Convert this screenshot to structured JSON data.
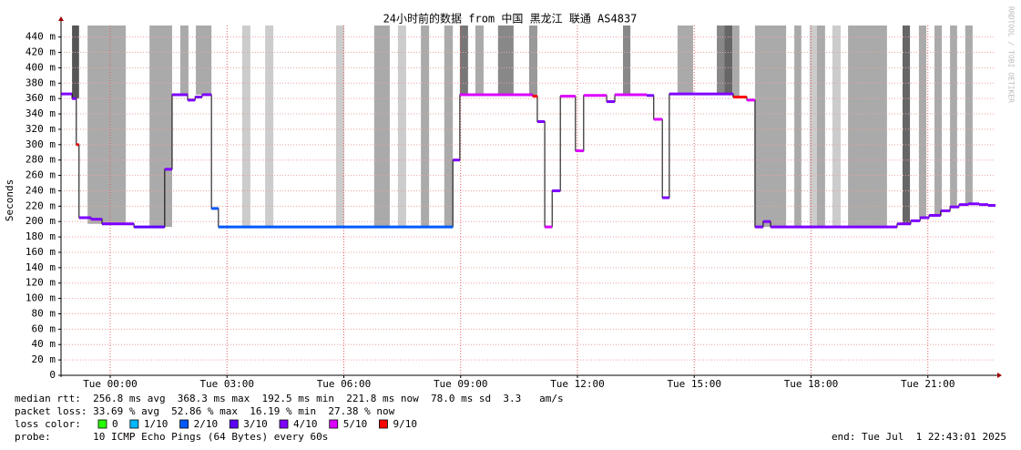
{
  "chart_data": {
    "type": "smokeping",
    "title": "24小时前的数据 from 中国 黑龙江 联通 AS4837",
    "y_label": "Seconds",
    "watermark": "RRDTOOL / TOBI OETIKER",
    "xlim": [
      -1.263,
      22.737
    ],
    "xticks": [
      {
        "value": 0,
        "label": "Tue 00:00"
      },
      {
        "value": 3,
        "label": "Tue 03:00"
      },
      {
        "value": 6,
        "label": "Tue 06:00"
      },
      {
        "value": 9,
        "label": "Tue 09:00"
      },
      {
        "value": 12,
        "label": "Tue 12:00"
      },
      {
        "value": 15,
        "label": "Tue 15:00"
      },
      {
        "value": 18,
        "label": "Tue 18:00"
      },
      {
        "value": 21,
        "label": "Tue 21:00"
      }
    ],
    "ylim": [
      0,
      455
    ],
    "yticks": [
      {
        "value": 0,
        "label": "0"
      },
      {
        "value": 20,
        "label": "20 m"
      },
      {
        "value": 40,
        "label": "40 m"
      },
      {
        "value": 60,
        "label": "60 m"
      },
      {
        "value": 80,
        "label": "80 m"
      },
      {
        "value": 100,
        "label": "100 m"
      },
      {
        "value": 120,
        "label": "120 m"
      },
      {
        "value": 140,
        "label": "140 m"
      },
      {
        "value": 160,
        "label": "160 m"
      },
      {
        "value": 180,
        "label": "180 m"
      },
      {
        "value": 200,
        "label": "200 m"
      },
      {
        "value": 220,
        "label": "220 m"
      },
      {
        "value": 240,
        "label": "240 m"
      },
      {
        "value": 260,
        "label": "260 m"
      },
      {
        "value": 280,
        "label": "280 m"
      },
      {
        "value": 300,
        "label": "300 m"
      },
      {
        "value": 320,
        "label": "320 m"
      },
      {
        "value": 340,
        "label": "340 m"
      },
      {
        "value": 360,
        "label": "360 m"
      },
      {
        "value": 380,
        "label": "380 m"
      },
      {
        "value": 400,
        "label": "400 m"
      },
      {
        "value": 420,
        "label": "420 m"
      },
      {
        "value": 440,
        "label": "440 m"
      }
    ],
    "grid": true,
    "loss_periods": [
      {
        "start": -0.98,
        "end": -0.8,
        "color": "#555555"
      },
      {
        "start": -0.58,
        "end": 0.4,
        "color": "#aaaaaa"
      },
      {
        "start": 1.01,
        "end": 1.59,
        "color": "#aaaaaa"
      },
      {
        "start": 1.8,
        "end": 2.01,
        "color": "#aaaaaa"
      },
      {
        "start": 2.2,
        "end": 2.6,
        "color": "#aaaaaa"
      },
      {
        "start": 3.39,
        "end": 3.6,
        "color": "#cccccc"
      },
      {
        "start": 3.98,
        "end": 4.19,
        "color": "#cccccc"
      },
      {
        "start": 5.8,
        "end": 6.01,
        "color": "#cccccc"
      },
      {
        "start": 6.78,
        "end": 7.18,
        "color": "#aaaaaa"
      },
      {
        "start": 7.39,
        "end": 7.6,
        "color": "#cccccc"
      },
      {
        "start": 7.98,
        "end": 8.19,
        "color": "#aaaaaa"
      },
      {
        "start": 8.58,
        "end": 8.8,
        "color": "#aaaaaa"
      },
      {
        "start": 8.98,
        "end": 9.19,
        "color": "#777777"
      },
      {
        "start": 9.38,
        "end": 9.59,
        "color": "#aaaaaa"
      },
      {
        "start": 9.96,
        "end": 10.36,
        "color": "#888888"
      },
      {
        "start": 10.76,
        "end": 10.97,
        "color": "#999999"
      },
      {
        "start": 13.17,
        "end": 13.36,
        "color": "#888888"
      },
      {
        "start": 14.57,
        "end": 14.97,
        "color": "#aaaaaa"
      },
      {
        "start": 15.58,
        "end": 15.77,
        "color": "#888888"
      },
      {
        "start": 15.77,
        "end": 15.98,
        "color": "#666666"
      },
      {
        "start": 15.98,
        "end": 16.16,
        "color": "#aaaaaa"
      },
      {
        "start": 16.56,
        "end": 17.36,
        "color": "#aaaaaa"
      },
      {
        "start": 17.57,
        "end": 17.75,
        "color": "#aaaaaa"
      },
      {
        "start": 17.96,
        "end": 18.15,
        "color": "#cccccc"
      },
      {
        "start": 18.15,
        "end": 18.36,
        "color": "#aaaaaa"
      },
      {
        "start": 18.55,
        "end": 18.76,
        "color": "#cccccc"
      },
      {
        "start": 18.95,
        "end": 19.95,
        "color": "#aaaaaa"
      },
      {
        "start": 20.35,
        "end": 20.54,
        "color": "#666666"
      },
      {
        "start": 20.77,
        "end": 20.96,
        "color": "#aaaaaa"
      },
      {
        "start": 21.17,
        "end": 21.36,
        "color": "#aaaaaa"
      },
      {
        "start": 21.57,
        "end": 21.75,
        "color": "#aaaaaa"
      },
      {
        "start": 21.96,
        "end": 22.15,
        "color": "#aaaaaa"
      }
    ],
    "x": [
      -1.26,
      -0.98,
      -0.87,
      -0.8,
      -0.49,
      -0.21,
      0.61,
      1.4,
      1.59,
      1.99,
      2.18,
      2.36,
      2.6,
      2.78,
      8.8,
      8.98,
      10.27,
      10.85,
      10.97,
      11.16,
      11.35,
      11.56,
      11.95,
      12.16,
      12.75,
      12.96,
      13.78,
      13.96,
      14.18,
      14.36,
      16.0,
      16.35,
      16.56,
      16.77,
      16.96,
      19.98,
      20.21,
      20.56,
      20.8,
      21.03,
      21.33,
      21.57,
      21.8,
      22.04,
      22.32,
      22.55
    ],
    "series": [
      {
        "name": "median rtt",
        "values": [
          366,
          360,
          300,
          205,
          203,
          197,
          193,
          268,
          365,
          358,
          362,
          365,
          217,
          193,
          280,
          365,
          365,
          363,
          330,
          193,
          240,
          363,
          292,
          364,
          356,
          365,
          364,
          333,
          231,
          366,
          362,
          358,
          193,
          200,
          193,
          193,
          197,
          201,
          205,
          208,
          214,
          219,
          222,
          223,
          222,
          221
        ],
        "loss": [
          4,
          4,
          6,
          4,
          4,
          4,
          3,
          4,
          4,
          4,
          4,
          4,
          2,
          2,
          4,
          5,
          5,
          6,
          4,
          5,
          4,
          5,
          5,
          5,
          4,
          5,
          4,
          5,
          4,
          4,
          6,
          5,
          4,
          4,
          4,
          4,
          4,
          4,
          4,
          4,
          4,
          4,
          4,
          4,
          4,
          4
        ]
      }
    ],
    "legend_title": "loss color:",
    "legend": [
      {
        "name": "0",
        "color": "#26ff00"
      },
      {
        "name": "1/10",
        "color": "#00b8ff"
      },
      {
        "name": "2/10",
        "color": "#0059ff"
      },
      {
        "name": "3/10",
        "color": "#5e00ff"
      },
      {
        "name": "4/10",
        "color": "#7e00ff"
      },
      {
        "name": "5/10",
        "color": "#dd00ff"
      },
      {
        "name": "9/10",
        "color": "#ff0000"
      }
    ],
    "stats": [
      "median rtt:  256.8 ms avg  368.3 ms max  192.5 ms min  221.8 ms now  78.0 ms sd  3.3   am/s",
      "packet loss: 33.69 % avg  52.86 % max  16.19 % min  27.38 % now"
    ],
    "probe": "probe:       10 ICMP Echo Pings (64 Bytes) every 60s",
    "end": "end: Tue Jul  1 22:43:01 2025"
  }
}
